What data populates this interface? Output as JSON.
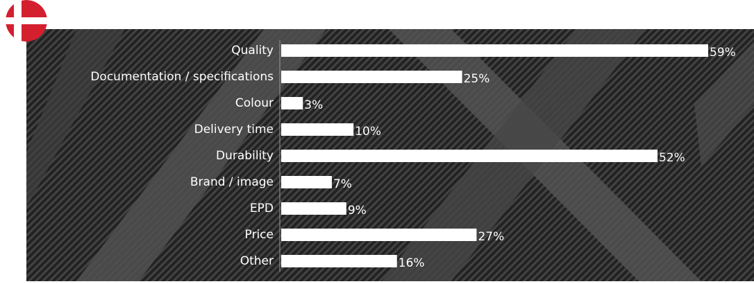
{
  "chart_data": {
    "type": "bar",
    "orientation": "horizontal",
    "categories": [
      "Quality",
      "Documentation / specifications",
      "Colour",
      "Delivery time",
      "Durability",
      "Brand / image",
      "EPD",
      "Price",
      "Other"
    ],
    "values": [
      59,
      25,
      3,
      10,
      52,
      7,
      9,
      27,
      16
    ],
    "value_labels": [
      "59%",
      "25%",
      "3%",
      "10%",
      "52%",
      "7%",
      "9%",
      "27%",
      "16%"
    ],
    "color": "#ffffff"
  }
}
